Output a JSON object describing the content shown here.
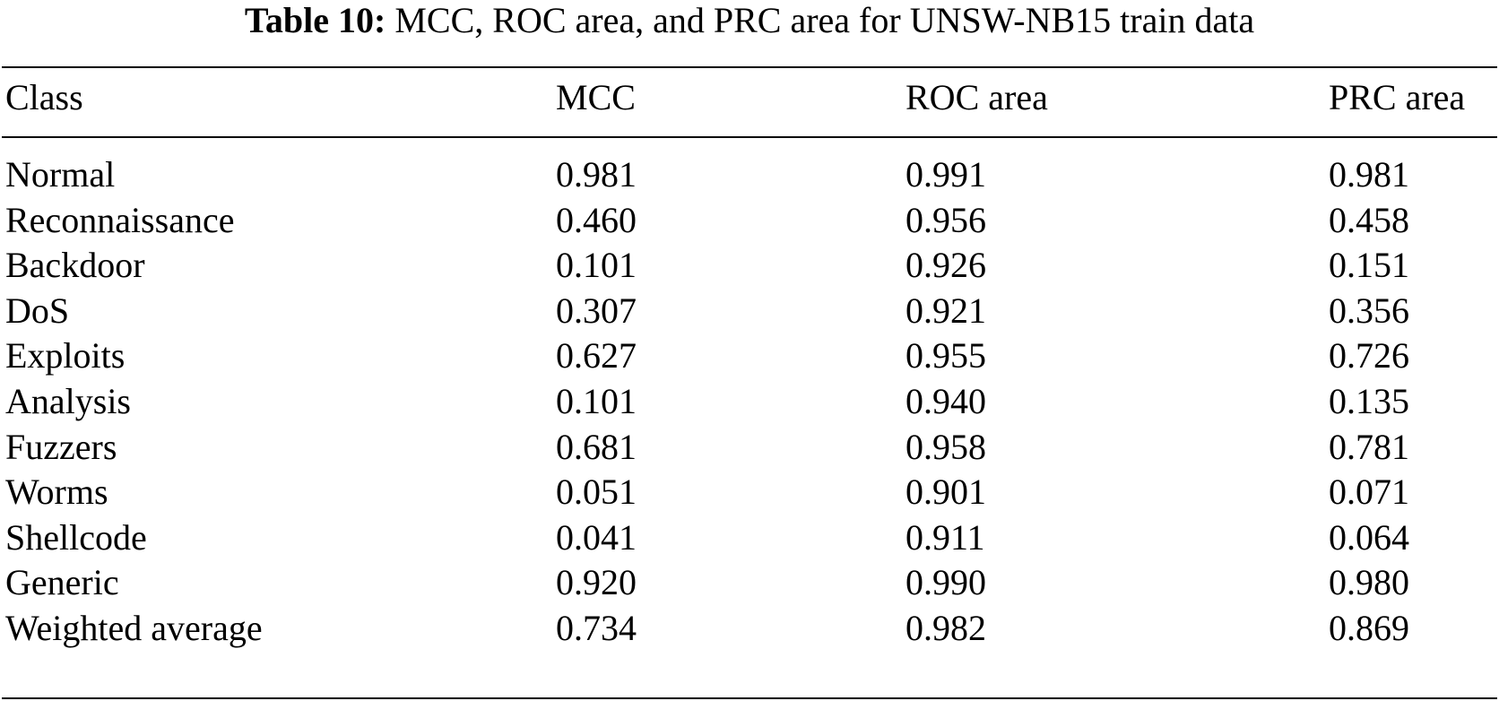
{
  "caption": {
    "label": "Table 10:",
    "text": "MCC, ROC area, and PRC area for UNSW-NB15 train data"
  },
  "headers": [
    "Class",
    "MCC",
    "ROC area",
    "PRC area"
  ],
  "rows": [
    [
      "Normal",
      "0.981",
      "0.991",
      "0.981"
    ],
    [
      "Reconnaissance",
      "0.460",
      "0.956",
      "0.458"
    ],
    [
      "Backdoor",
      "0.101",
      "0.926",
      "0.151"
    ],
    [
      "DoS",
      "0.307",
      "0.921",
      "0.356"
    ],
    [
      "Exploits",
      "0.627",
      "0.955",
      "0.726"
    ],
    [
      "Analysis",
      "0.101",
      "0.940",
      "0.135"
    ],
    [
      "Fuzzers",
      "0.681",
      "0.958",
      "0.781"
    ],
    [
      "Worms",
      "0.051",
      "0.901",
      "0.071"
    ],
    [
      "Shellcode",
      "0.041",
      "0.911",
      "0.064"
    ],
    [
      "Generic",
      "0.920",
      "0.990",
      "0.980"
    ],
    [
      "Weighted average",
      "0.734",
      "0.982",
      "0.869"
    ]
  ]
}
